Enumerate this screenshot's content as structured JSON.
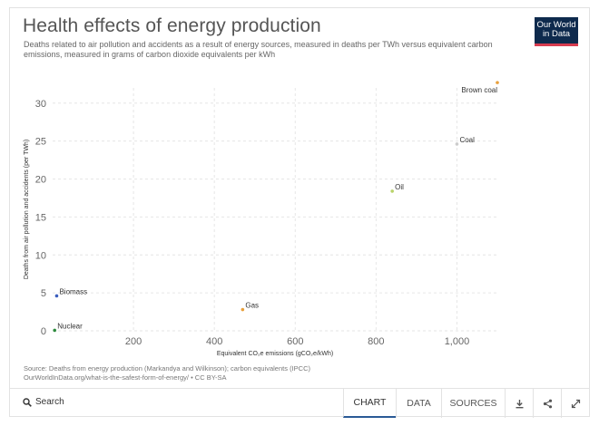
{
  "header": {
    "title": "Health effects of energy production",
    "subtitle": "Deaths related to air pollution and accidents as a result of energy sources, measured in deaths per TWh versus equivalent carbon emissions, measured in grams of carbon dioxide equivalents per kWh",
    "logo_line1": "Our World",
    "logo_line2": "in Data"
  },
  "chart_data": {
    "type": "scatter",
    "title": "Health effects of energy production",
    "xlabel": "Equivalent CO₂e emissions (gCO₂e/kWh)",
    "ylabel": "Deaths from air pollution and accidents (per TWh)",
    "xlim": [
      0,
      1100
    ],
    "ylim": [
      0,
      32
    ],
    "xticks": [
      200,
      400,
      600,
      800,
      1000
    ],
    "xtick_labels": [
      "200",
      "400",
      "600",
      "800",
      "1,000"
    ],
    "yticks": [
      0,
      5,
      10,
      15,
      20,
      25,
      30
    ],
    "grid": true,
    "points": [
      {
        "label": "Brown coal",
        "x": 1100,
        "y": 32.7,
        "color": "#e8a03c"
      },
      {
        "label": "Coal",
        "x": 1000,
        "y": 24.6,
        "color": "#cccccc"
      },
      {
        "label": "Oil",
        "x": 840,
        "y": 18.4,
        "color": "#b9d36a"
      },
      {
        "label": "Biomass",
        "x": 10,
        "y": 4.6,
        "color": "#3c5fbe"
      },
      {
        "label": "Gas",
        "x": 470,
        "y": 2.8,
        "color": "#e8a03c"
      },
      {
        "label": "Nuclear",
        "x": 5,
        "y": 0.07,
        "color": "#2e8b3e"
      }
    ]
  },
  "source": {
    "line1": "Source: Deaths from energy production (Markandya and Wilkinson); carbon equivalents (IPCC)",
    "line2": "OurWorldInData.org/what-is-the-safest-form-of-energy/ • CC BY-SA"
  },
  "footer": {
    "search_label": "Search",
    "tabs": [
      "CHART",
      "DATA",
      "SOURCES"
    ],
    "icons": [
      "download-icon",
      "share-icon",
      "expand-icon"
    ]
  }
}
